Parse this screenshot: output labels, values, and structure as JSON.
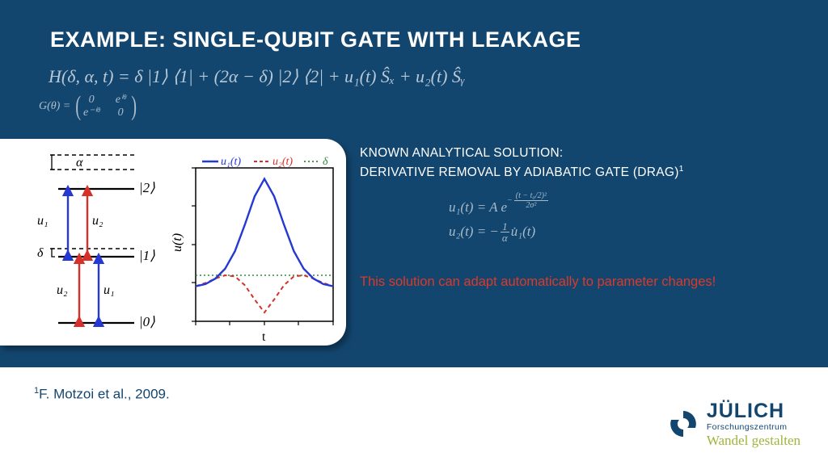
{
  "title": "EXAMPLE: SINGLE-QUBIT GATE WITH LEAKAGE",
  "hamiltonian": "H(δ, α, t) = δ |1⟩ ⟨1| + (2α − δ) |2⟩ ⟨2| + u₁(t) Ŝₓ + u₂(t) Ŝᵧ",
  "goal_prefix": "G(θ) = ",
  "goal_m00": "0",
  "goal_m01": "eⁱᶿ",
  "goal_m10": "e⁻ⁱᶿ",
  "goal_m11": "0",
  "known_line1": "KNOWN ANALYTICAL SOLUTION:",
  "known_line2": "DERIVATIVE REMOVAL BY ADIABATIC GATE (DRAG)",
  "known_sup": "1",
  "drag_u1_lhs": "u₁(t) = A e",
  "drag_u1_exp_num": "(t − t₀/2)²",
  "drag_u1_exp_den": "2σ²",
  "drag_u2_lhs": "u₂(t) = −",
  "drag_u2_frac_num": "1",
  "drag_u2_frac_den": "α",
  "drag_u2_rhs": " u̇₁(t)",
  "redline": "This solution can adapt automatically to parameter changes!",
  "citation": "F. Motzoi et al., 2009.",
  "citation_sup": "1",
  "logo_main": "JÜLICH",
  "logo_sub": "Forschungszentrum",
  "logo_script": "Wandel gestalten",
  "colors": {
    "slide_bg": "#13466f",
    "eq_color": "#b7c8d6",
    "red": "#d93a2b",
    "green_series": "#2e8b3d",
    "blue_series": "#2638d4",
    "red_series": "#d6302b",
    "level_line": "#1a1a1a"
  },
  "legend": {
    "u1": "u₁(t)",
    "u2": "u₂(t)",
    "delta": "δ"
  },
  "axis": {
    "x": "t",
    "y": "u(t)"
  },
  "levels": {
    "l0": "|0⟩",
    "l1": "|1⟩",
    "l2": "|2⟩",
    "alpha": "α",
    "delta": "δ",
    "u1": "u₁",
    "u2": "u₂"
  },
  "chart": {
    "type": "line",
    "xlim": [
      0,
      10
    ],
    "ylim": [
      -0.3,
      1.1
    ],
    "u1_values": [
      0.02,
      0.04,
      0.09,
      0.18,
      0.34,
      0.58,
      0.84,
      1.0,
      0.84,
      0.58,
      0.34,
      0.18,
      0.09,
      0.04,
      0.02
    ],
    "u2_values": [
      0.02,
      0.05,
      0.09,
      0.12,
      0.11,
      0.03,
      -0.1,
      -0.22,
      -0.1,
      0.03,
      0.11,
      0.12,
      0.09,
      0.05,
      0.02
    ],
    "delta_value": 0.12,
    "line_width_u1": 2.4,
    "line_width_u2": 2.0,
    "line_width_delta": 1.6,
    "background": "#ffffff"
  }
}
